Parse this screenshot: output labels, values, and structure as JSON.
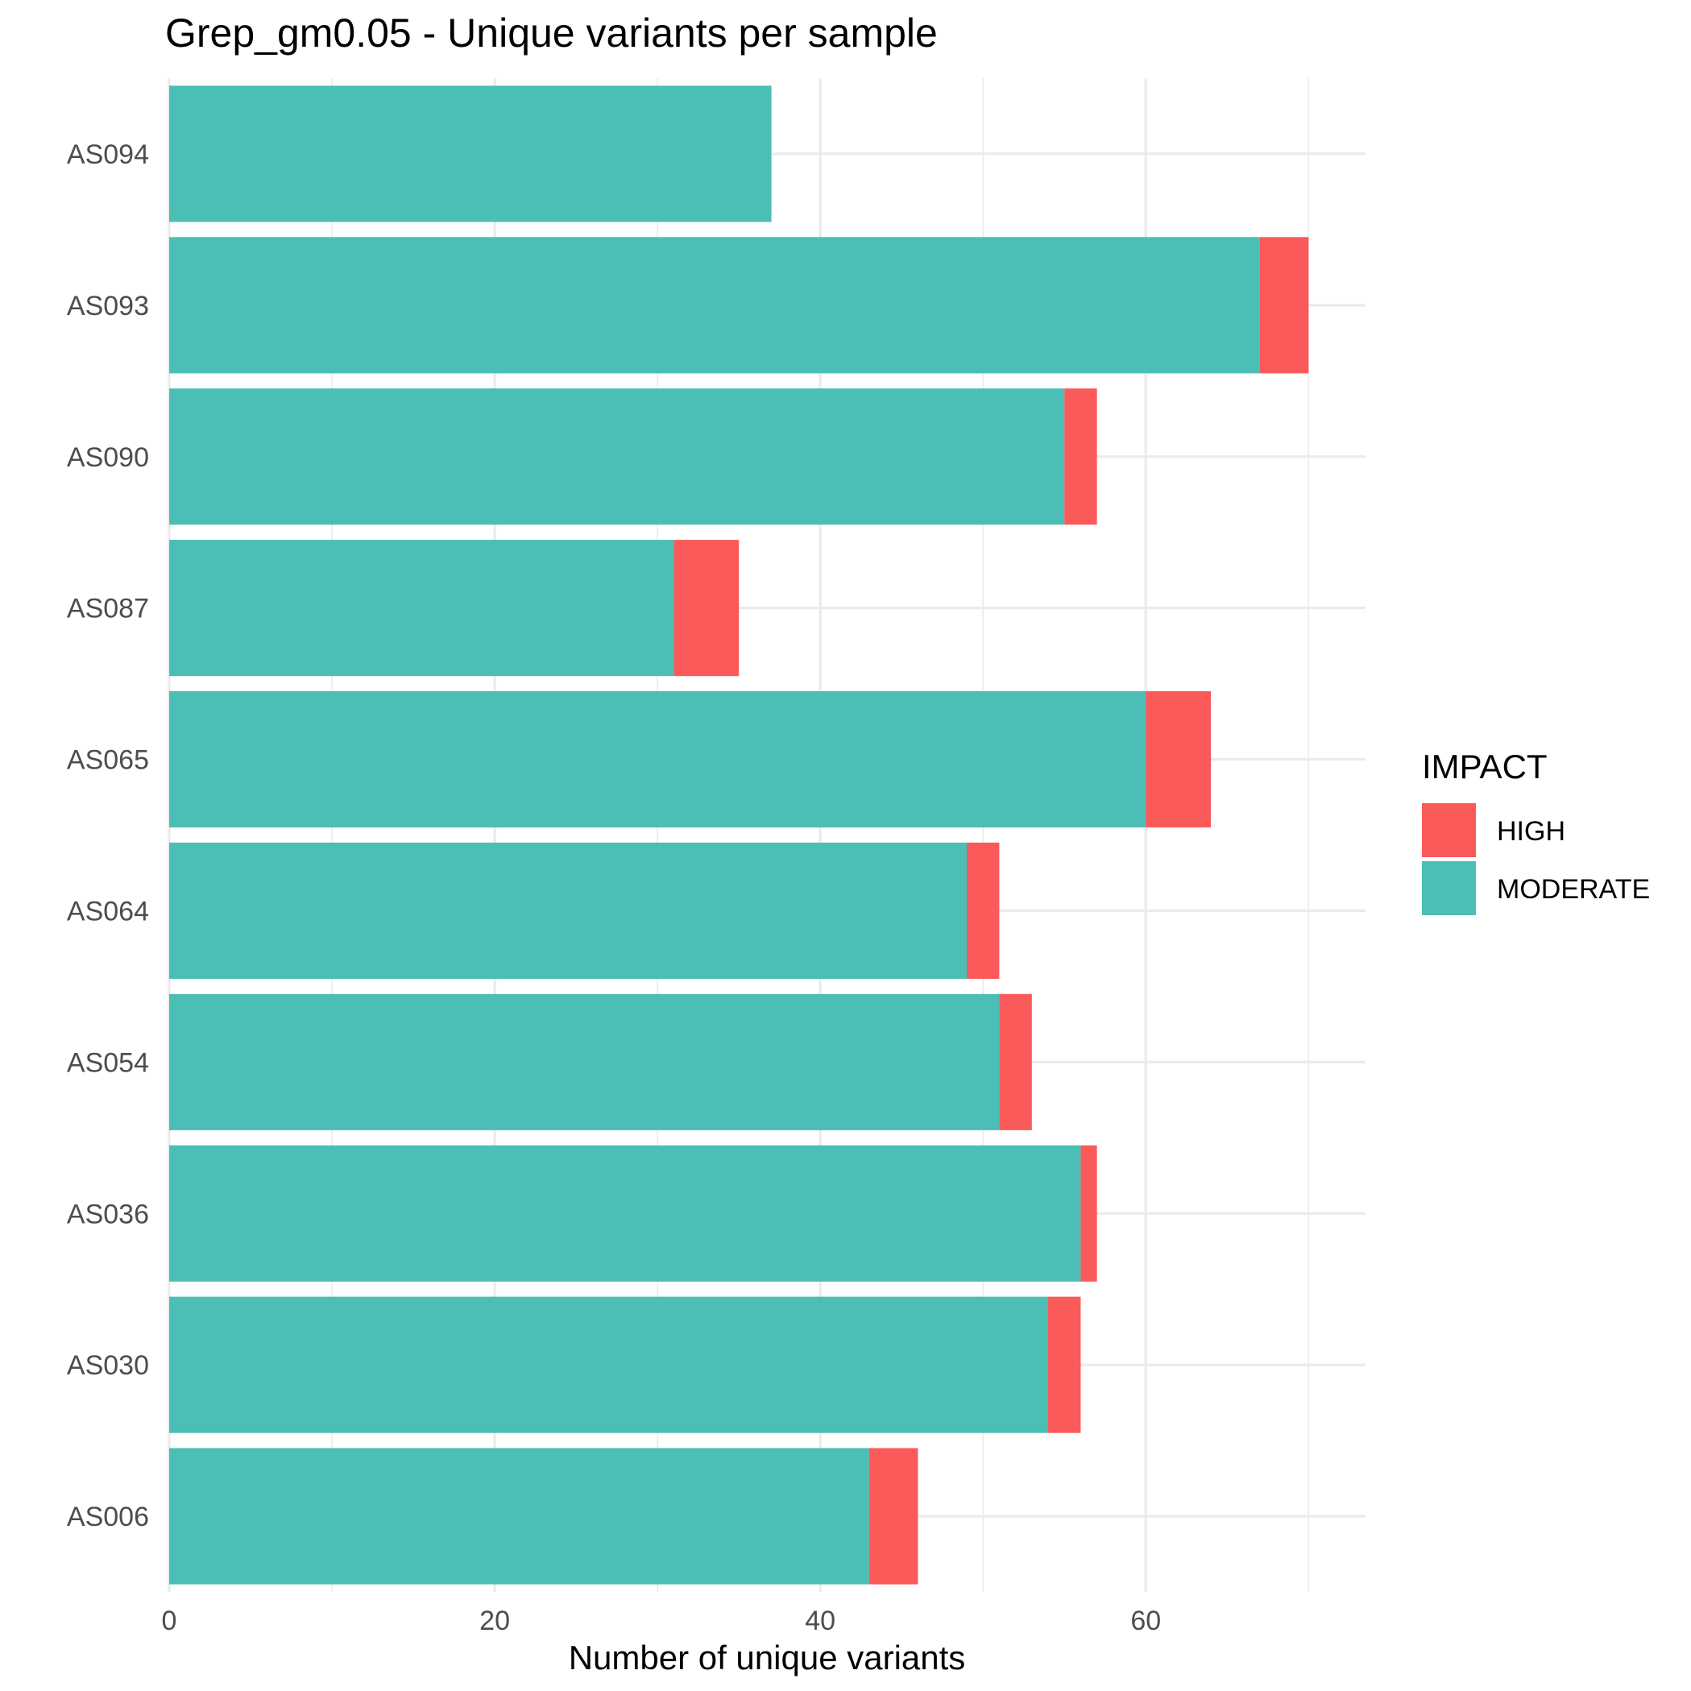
{
  "chart_data": {
    "type": "bar",
    "orientation": "horizontal",
    "stacked": true,
    "title": "Grep_gm0.05 - Unique variants per sample",
    "xlabel": "Number of unique variants",
    "ylabel": "",
    "xlim": [
      0,
      73.5
    ],
    "xticks": [
      0,
      20,
      40,
      60
    ],
    "grid": true,
    "legend": {
      "title": "IMPACT",
      "position": "right"
    },
    "categories": [
      "AS094",
      "AS093",
      "AS090",
      "AS087",
      "AS065",
      "AS064",
      "AS054",
      "AS036",
      "AS030",
      "AS006"
    ],
    "series": [
      {
        "name": "MODERATE",
        "color": "#4BBEB5",
        "values": [
          37,
          67,
          55,
          31,
          60,
          49,
          51,
          56,
          54,
          43
        ]
      },
      {
        "name": "HIGH",
        "color": "#FA5A5A",
        "values": [
          0,
          3,
          2,
          4,
          4,
          2,
          2,
          1,
          2,
          3
        ]
      }
    ],
    "legend_order": [
      "HIGH",
      "MODERATE"
    ]
  }
}
